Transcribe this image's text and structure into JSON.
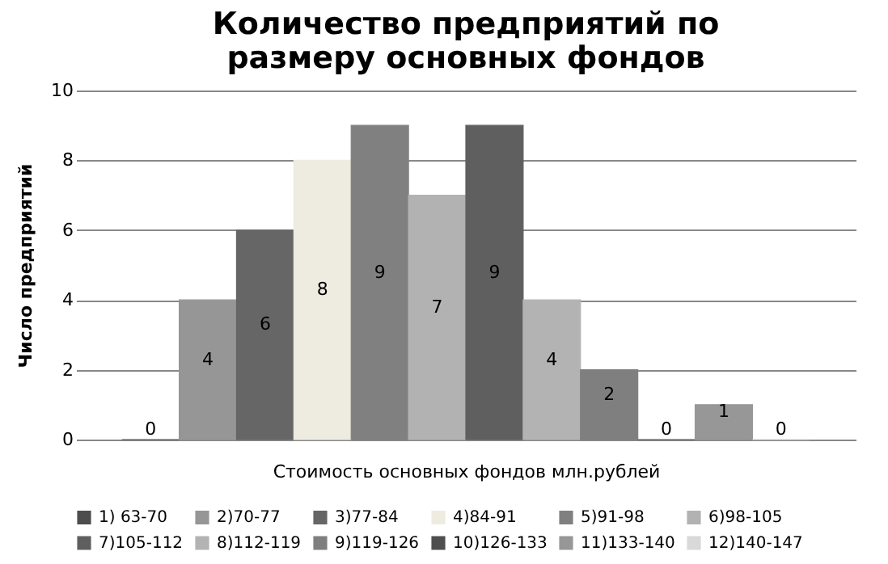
{
  "chart_data": {
    "type": "bar",
    "title": "Количество предприятий по размеру основных фондов",
    "xlabel": "Стоимость основных фондов млн.рублей",
    "ylabel": "Число предприятий",
    "categories": [
      null
    ],
    "series": [
      {
        "name": "1) 63-70",
        "color": "#4d4d4d",
        "values": [
          0
        ]
      },
      {
        "name": "2)70-77",
        "color": "#969696",
        "values": [
          4
        ]
      },
      {
        "name": "3)77-84",
        "color": "#666666",
        "values": [
          6
        ]
      },
      {
        "name": "4)84-91",
        "color": "#eeece1",
        "values": [
          8
        ]
      },
      {
        "name": "5)91-98",
        "color": "#808080",
        "values": [
          9
        ]
      },
      {
        "name": "6)98-105",
        "color": "#b2b2b2",
        "values": [
          7
        ]
      },
      {
        "name": "7)105-112",
        "color": "#5f5f5f",
        "values": [
          9
        ]
      },
      {
        "name": "8)112-119",
        "color": "#b3b3b3",
        "values": [
          4
        ]
      },
      {
        "name": "9)119-126",
        "color": "#7f7f7f",
        "values": [
          2
        ]
      },
      {
        "name": "10)126-133",
        "color": "#4e4e4e",
        "values": [
          0
        ]
      },
      {
        "name": "11)133-140",
        "color": "#979797",
        "values": [
          1
        ]
      },
      {
        "name": "12)140-147",
        "color": "#d9d9d9",
        "values": [
          0
        ]
      }
    ],
    "ylim": [
      0,
      10
    ],
    "yticks": [
      0,
      2,
      4,
      6,
      8,
      10
    ],
    "grid": "y",
    "legend": "bottom",
    "data_labels": true
  }
}
